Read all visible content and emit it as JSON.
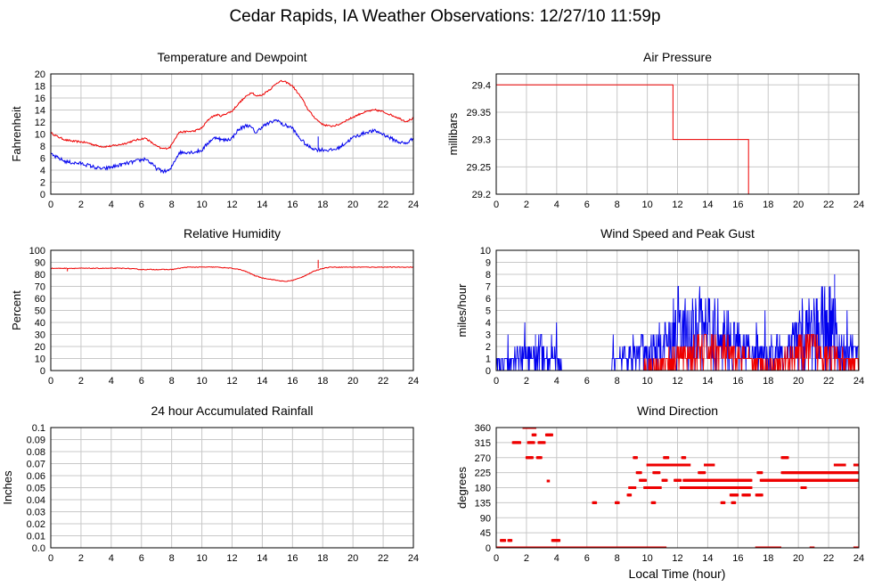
{
  "page": {
    "title": "Cedar Rapids, IA Weather Observations: 12/27/10 11:59p",
    "x_axis_label": "Local Time (hour)"
  },
  "colors": {
    "red": "#ee0000",
    "blue": "#0000ee",
    "grid": "#c8c8c8",
    "frame": "#000000"
  },
  "chart_data": [
    {
      "id": "temperature",
      "type": "line",
      "title": "Temperature and Dewpoint",
      "ylabel": "Fahrenheit",
      "xlim": [
        0,
        24
      ],
      "ylim": [
        0,
        20
      ],
      "xticks": [
        0,
        2,
        4,
        6,
        8,
        10,
        12,
        14,
        16,
        18,
        20,
        22,
        24
      ],
      "yticks": [
        0,
        2,
        4,
        6,
        8,
        10,
        12,
        14,
        16,
        18,
        20
      ],
      "series": [
        {
          "color": "#ee0000",
          "noise": 0.15,
          "x": [
            0,
            0.5,
            1,
            1.5,
            2,
            2.5,
            3,
            3.5,
            4,
            4.5,
            5,
            5.5,
            6,
            6.3,
            6.6,
            7,
            7.3,
            7.6,
            7.9,
            8.2,
            8.5,
            9,
            9.5,
            10,
            10.3,
            10.6,
            11,
            11.3,
            11.6,
            12,
            12.3,
            12.6,
            13,
            13.3,
            13.6,
            14,
            14.3,
            14.6,
            15,
            15.3,
            15.6,
            16,
            16.3,
            16.6,
            17,
            17.3,
            17.6,
            18,
            18.5,
            19,
            19.5,
            20,
            20.5,
            21,
            21.5,
            22,
            22.5,
            23,
            23.5,
            24
          ],
          "y": [
            10.2,
            9.5,
            9,
            8.8,
            8.7,
            8.5,
            8.1,
            7.9,
            8.0,
            8.2,
            8.5,
            8.9,
            9.2,
            9.3,
            8.7,
            8.0,
            7.6,
            7.6,
            7.8,
            9.2,
            10.3,
            10.4,
            10.5,
            11.0,
            12.0,
            12.8,
            13.2,
            13.0,
            13.4,
            13.8,
            14.7,
            15.5,
            16.4,
            17.0,
            16.3,
            16.5,
            17.1,
            17.6,
            18.6,
            18.8,
            18.6,
            18.0,
            17.0,
            16.0,
            14.2,
            13.2,
            12.4,
            11.6,
            11.3,
            11.5,
            12.2,
            12.8,
            13.4,
            13.8,
            14.0,
            13.7,
            13.2,
            12.7,
            12.1,
            12.6
          ]
        },
        {
          "color": "#0000ee",
          "noise": 0.3,
          "x": [
            0,
            0.5,
            1,
            1.5,
            2,
            2.5,
            3,
            3.5,
            4,
            4.5,
            5,
            5.5,
            6,
            6.3,
            6.6,
            7,
            7.3,
            7.6,
            7.9,
            8.2,
            8.5,
            9,
            9.5,
            10,
            10.3,
            10.6,
            11,
            11.3,
            11.6,
            12,
            12.3,
            12.6,
            13,
            13.3,
            13.6,
            14,
            14.3,
            14.6,
            15,
            15.3,
            15.6,
            16,
            16.3,
            16.6,
            17,
            17.3,
            17.6,
            18,
            18.5,
            19,
            19.5,
            20,
            20.5,
            21,
            21.5,
            22,
            22.5,
            23,
            23.5,
            24
          ],
          "y": [
            6.6,
            6.0,
            5.4,
            5.2,
            5.1,
            4.8,
            4.4,
            4.2,
            4.5,
            4.8,
            5.1,
            5.4,
            5.7,
            5.9,
            5.2,
            4.3,
            3.9,
            3.8,
            4.0,
            5.6,
            6.9,
            7.0,
            7.0,
            7.3,
            8.2,
            9.0,
            9.5,
            9.0,
            9.0,
            9.3,
            10.4,
            11.0,
            11.5,
            11.0,
            10.2,
            11.3,
            11.6,
            12.0,
            12.4,
            11.6,
            11.4,
            11.0,
            9.8,
            9.0,
            8.0,
            7.7,
            7.4,
            7.4,
            7.3,
            7.6,
            8.5,
            9.4,
            9.9,
            10.4,
            10.5,
            10.0,
            9.3,
            8.7,
            8.4,
            9.3
          ],
          "spikes": [
            [
              17.7,
              7.6,
              9.6
            ]
          ]
        }
      ]
    },
    {
      "id": "pressure",
      "type": "line",
      "title": "Air Pressure",
      "ylabel": "millibars",
      "xlim": [
        0,
        24
      ],
      "ylim": [
        29.2,
        29.42
      ],
      "xticks": [
        0,
        2,
        4,
        6,
        8,
        10,
        12,
        14,
        16,
        18,
        20,
        22,
        24
      ],
      "yticks": [
        29.2,
        29.25,
        29.3,
        29.35,
        29.4
      ],
      "yticklabels": [
        "29.2",
        "29.25",
        "29.3",
        "29.35",
        "29.4"
      ],
      "series": [
        {
          "color": "#ee0000",
          "step": true,
          "x": [
            0,
            11.7,
            11.7,
            16.7,
            16.7,
            24
          ],
          "y": [
            29.4,
            29.4,
            29.3,
            29.3,
            29.2,
            29.2
          ]
        }
      ]
    },
    {
      "id": "humidity",
      "type": "line",
      "title": "Relative Humidity",
      "ylabel": "Percent",
      "xlim": [
        0,
        24
      ],
      "ylim": [
        0,
        100
      ],
      "xticks": [
        0,
        2,
        4,
        6,
        8,
        10,
        12,
        14,
        16,
        18,
        20,
        22,
        24
      ],
      "yticks": [
        0,
        10,
        20,
        30,
        40,
        50,
        60,
        70,
        80,
        90,
        100
      ],
      "series": [
        {
          "color": "#ee0000",
          "noise": 0.3,
          "x": [
            0,
            1,
            2,
            3,
            4,
            5,
            6,
            6.5,
            7,
            8,
            9,
            10,
            11,
            12,
            12.5,
            13,
            13.5,
            14,
            14.5,
            15,
            15.5,
            16,
            16.5,
            17,
            17.5,
            18,
            18.5,
            19,
            20,
            21,
            22,
            23,
            24
          ],
          "y": [
            85,
            85,
            85,
            85,
            85,
            85,
            84,
            84,
            84,
            84,
            86,
            86,
            86,
            85,
            84,
            82,
            79,
            77,
            76,
            75,
            74,
            75,
            77,
            80,
            83,
            85,
            86,
            86,
            86,
            86,
            86,
            86,
            86
          ],
          "spikes": [
            [
              1.1,
              85,
              82.5
            ],
            [
              17.7,
              85,
              92
            ]
          ]
        }
      ]
    },
    {
      "id": "wind-speed",
      "type": "line",
      "title": "Wind Speed and Peak Gust",
      "ylabel": "miles/hour",
      "xlim": [
        0,
        24
      ],
      "ylim": [
        0,
        10
      ],
      "xticks": [
        0,
        2,
        4,
        6,
        8,
        10,
        12,
        14,
        16,
        18,
        20,
        22,
        24
      ],
      "yticks": [
        0,
        1,
        2,
        3,
        4,
        5,
        6,
        7,
        8,
        9,
        10
      ],
      "series": [
        {
          "color": "#0000ee",
          "generated": "gust",
          "x": [
            0,
            0.5,
            1,
            2,
            3,
            4,
            4.5,
            6,
            7,
            8,
            9,
            10,
            11,
            12,
            13,
            14,
            15,
            16,
            17,
            18,
            19,
            20,
            21,
            22,
            22.5,
            23,
            24
          ],
          "y": [
            1,
            1,
            1,
            2,
            2,
            1.5,
            0,
            0,
            0,
            1,
            2,
            2,
            3,
            4,
            5,
            5,
            4,
            3,
            2,
            2,
            2,
            4,
            5,
            6,
            4,
            2,
            2
          ]
        },
        {
          "color": "#ee0000",
          "generated": "speed",
          "x": [
            0,
            8,
            10,
            11,
            12,
            13,
            14,
            15,
            16,
            17,
            18,
            19,
            20,
            21,
            22,
            23,
            24
          ],
          "y": [
            0,
            0,
            0.5,
            1,
            1.5,
            2,
            2.5,
            2,
            1.5,
            1,
            0.5,
            1,
            2,
            2.5,
            2,
            1,
            1
          ]
        }
      ]
    },
    {
      "id": "rainfall",
      "type": "line",
      "title": "24 hour Accumulated Rainfall",
      "ylabel": "Inches",
      "xlim": [
        0,
        24
      ],
      "ylim": [
        0,
        0.1
      ],
      "xticks": [
        0,
        2,
        4,
        6,
        8,
        10,
        12,
        14,
        16,
        18,
        20,
        22,
        24
      ],
      "yticks": [
        0,
        0.01,
        0.02,
        0.03,
        0.04,
        0.05,
        0.06,
        0.07,
        0.08,
        0.09,
        0.1
      ],
      "yticklabels": [
        "0.0",
        "0.01",
        "0.02",
        "0.03",
        "0.04",
        "0.05",
        "0.06",
        "0.07",
        "0.08",
        "0.09",
        "0.1"
      ],
      "series": [
        {
          "color": "#ee0000",
          "x": [
            0,
            24
          ],
          "y": [
            0,
            0
          ]
        }
      ]
    },
    {
      "id": "wind-direction",
      "type": "scatter",
      "title": "Wind Direction",
      "ylabel": "degrees",
      "xlabel": "Local Time (hour)",
      "xlim": [
        0,
        24
      ],
      "ylim": [
        0,
        360
      ],
      "xticks": [
        0,
        2,
        4,
        6,
        8,
        10,
        12,
        14,
        16,
        18,
        20,
        22,
        24
      ],
      "yticks": [
        0,
        45,
        90,
        135,
        180,
        225,
        270,
        315,
        360
      ],
      "series": [
        {
          "color": "#ee0000",
          "bands": [
            [
              0.0,
              11.2,
              0
            ],
            [
              17.2,
              18.8,
              0
            ],
            [
              20.8,
              21.0,
              0
            ],
            [
              23.7,
              24.0,
              0
            ],
            [
              0.3,
              0.6,
              22
            ],
            [
              0.8,
              1.0,
              22
            ],
            [
              3.7,
              4.2,
              22
            ],
            [
              1.1,
              1.6,
              315
            ],
            [
              2.1,
              2.5,
              315
            ],
            [
              2.8,
              3.2,
              315
            ],
            [
              1.8,
              2.0,
              360
            ],
            [
              2.1,
              2.6,
              360
            ],
            [
              2.4,
              2.6,
              338
            ],
            [
              3.3,
              3.7,
              338
            ],
            [
              2.0,
              2.4,
              270
            ],
            [
              2.7,
              3.0,
              270
            ],
            [
              6.4,
              6.6,
              135
            ],
            [
              7.9,
              8.1,
              135
            ],
            [
              10.3,
              10.5,
              135
            ],
            [
              14.9,
              15.1,
              135
            ],
            [
              15.6,
              15.8,
              135
            ],
            [
              8.7,
              8.9,
              158
            ],
            [
              15.5,
              16.0,
              158
            ],
            [
              16.3,
              16.8,
              158
            ],
            [
              17.2,
              17.6,
              158
            ],
            [
              8.8,
              9.2,
              180
            ],
            [
              9.8,
              10.9,
              180
            ],
            [
              12.2,
              16.9,
              180
            ],
            [
              20.2,
              20.5,
              180
            ],
            [
              9.5,
              9.9,
              202
            ],
            [
              11.0,
              11.3,
              202
            ],
            [
              11.8,
              12.2,
              202
            ],
            [
              12.4,
              16.9,
              202
            ],
            [
              17.5,
              24.0,
              202
            ],
            [
              9.3,
              9.6,
              225
            ],
            [
              10.4,
              10.8,
              225
            ],
            [
              13.4,
              13.8,
              225
            ],
            [
              17.3,
              17.6,
              225
            ],
            [
              18.9,
              24.0,
              225
            ],
            [
              10.0,
              12.8,
              248
            ],
            [
              13.8,
              14.4,
              248
            ],
            [
              22.4,
              23.1,
              248
            ],
            [
              23.7,
              24.0,
              248
            ],
            [
              9.1,
              9.3,
              270
            ],
            [
              11.1,
              11.4,
              270
            ],
            [
              12.3,
              12.5,
              270
            ],
            [
              18.9,
              19.3,
              270
            ],
            [
              3.4,
              3.5,
              200
            ]
          ]
        }
      ]
    }
  ]
}
